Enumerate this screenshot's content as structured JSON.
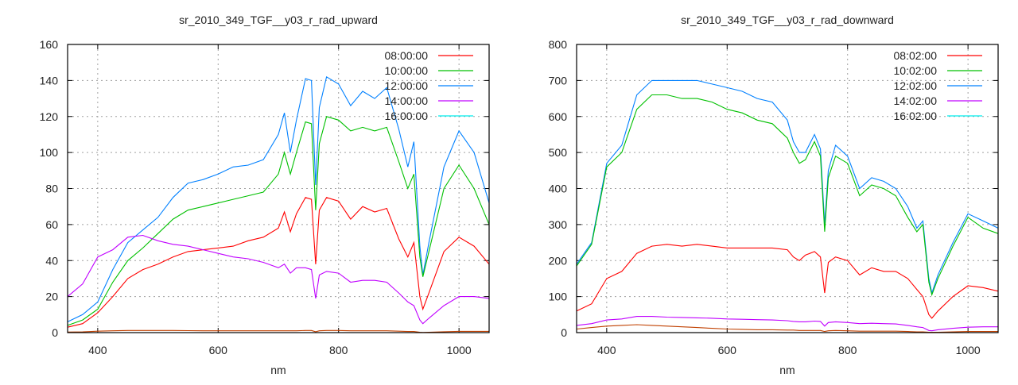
{
  "chart_data": [
    {
      "type": "line",
      "title": "sr_2010_349_TGF__y03_r_rad_upward",
      "xlabel": "nm",
      "ylabel": "",
      "xlim": [
        350,
        1050
      ],
      "ylim": [
        0,
        160
      ],
      "xticks": [
        400,
        600,
        800,
        1000
      ],
      "yticks": [
        0,
        20,
        40,
        60,
        80,
        100,
        120,
        140,
        160
      ],
      "grid": true,
      "legend_position": "top-right",
      "x": [
        350,
        375,
        400,
        425,
        450,
        475,
        500,
        525,
        550,
        575,
        600,
        625,
        650,
        675,
        700,
        710,
        720,
        730,
        745,
        755,
        762,
        768,
        780,
        800,
        820,
        840,
        860,
        880,
        900,
        915,
        925,
        935,
        940,
        950,
        975,
        1000,
        1025,
        1050
      ],
      "series": [
        {
          "name": "08:00:00",
          "legend_color": "#ff0000",
          "line_color": "#0080ff",
          "values": [
            6,
            10,
            17,
            35,
            50,
            57,
            64,
            75,
            83,
            85,
            88,
            92,
            93,
            96,
            110,
            122,
            100,
            118,
            141,
            140,
            82,
            125,
            142,
            138,
            126,
            134,
            130,
            136,
            113,
            92,
            106,
            48,
            32,
            50,
            92,
            112,
            100,
            72
          ]
        },
        {
          "name": "10:00:00",
          "legend_color": "#00c000",
          "line_color": "#00c000",
          "values": [
            4,
            7,
            13,
            28,
            40,
            47,
            55,
            63,
            68,
            70,
            72,
            74,
            76,
            78,
            88,
            100,
            88,
            100,
            117,
            116,
            68,
            105,
            120,
            118,
            112,
            114,
            112,
            114,
            95,
            80,
            88,
            42,
            31,
            45,
            80,
            93,
            80,
            60
          ]
        },
        {
          "name": "12:00:00",
          "legend_color": "#0080ff",
          "line_color": "#ff0000",
          "values": [
            3,
            5,
            11,
            20,
            30,
            35,
            38,
            42,
            45,
            46,
            47,
            48,
            51,
            53,
            58,
            67,
            56,
            66,
            75,
            74,
            38,
            68,
            75,
            73,
            63,
            70,
            67,
            69,
            52,
            42,
            50,
            20,
            13,
            22,
            45,
            53,
            48,
            38
          ]
        },
        {
          "name": "14:00:00",
          "legend_color": "#c000ff",
          "line_color": "#c000ff",
          "values": [
            20,
            27,
            42,
            46,
            53,
            54,
            51,
            49,
            48,
            46,
            44,
            42,
            41,
            39,
            36,
            38,
            33,
            36,
            36,
            35,
            19,
            32,
            34,
            33,
            28,
            29,
            29,
            28,
            22,
            17,
            15,
            7,
            5,
            8,
            15,
            20,
            20,
            19
          ]
        },
        {
          "name": "16:00:00",
          "legend_color": "#00eeee",
          "line_color": "#c04000",
          "values": [
            0.3,
            0.4,
            0.8,
            1,
            1.2,
            1.2,
            1.2,
            1.2,
            1.1,
            1,
            1,
            1,
            1,
            1,
            1,
            1,
            1,
            1,
            1.2,
            1.2,
            0.5,
            1,
            1.2,
            1.2,
            1,
            1,
            1,
            1,
            0.8,
            0.6,
            0.6,
            0.2,
            0.1,
            0.2,
            0.5,
            0.7,
            0.7,
            0.7
          ]
        }
      ]
    },
    {
      "type": "line",
      "title": "sr_2010_349_TGF__y03_r_rad_downward",
      "xlabel": "nm",
      "ylabel": "",
      "xlim": [
        350,
        1050
      ],
      "ylim": [
        0,
        800
      ],
      "xticks": [
        400,
        600,
        800,
        1000
      ],
      "yticks": [
        0,
        100,
        200,
        300,
        400,
        500,
        600,
        700,
        800
      ],
      "grid": true,
      "legend_position": "top-right",
      "x": [
        350,
        375,
        400,
        425,
        450,
        475,
        500,
        525,
        550,
        575,
        600,
        625,
        650,
        675,
        700,
        710,
        720,
        730,
        745,
        755,
        762,
        768,
        780,
        800,
        820,
        840,
        860,
        880,
        900,
        915,
        925,
        935,
        940,
        950,
        975,
        1000,
        1025,
        1050
      ],
      "series": [
        {
          "name": "08:02:00",
          "legend_color": "#ff0000",
          "line_color": "#0080ff",
          "values": [
            190,
            250,
            470,
            520,
            660,
            700,
            700,
            700,
            700,
            690,
            680,
            670,
            650,
            640,
            590,
            530,
            500,
            500,
            550,
            510,
            300,
            450,
            520,
            490,
            400,
            430,
            420,
            400,
            350,
            290,
            310,
            150,
            110,
            160,
            250,
            330,
            310,
            290
          ]
        },
        {
          "name": "10:02:00",
          "legend_color": "#00c000",
          "line_color": "#00c000",
          "values": [
            185,
            245,
            460,
            500,
            620,
            660,
            660,
            650,
            650,
            640,
            620,
            610,
            590,
            580,
            540,
            500,
            470,
            480,
            530,
            490,
            280,
            430,
            490,
            470,
            380,
            410,
            400,
            380,
            320,
            280,
            300,
            140,
            105,
            150,
            240,
            320,
            290,
            275
          ]
        },
        {
          "name": "12:02:00",
          "legend_color": "#0080ff",
          "line_color": "#ff0000",
          "values": [
            60,
            80,
            150,
            170,
            220,
            240,
            245,
            240,
            245,
            240,
            235,
            235,
            235,
            235,
            230,
            210,
            200,
            215,
            225,
            210,
            110,
            195,
            210,
            200,
            160,
            180,
            170,
            170,
            150,
            120,
            100,
            50,
            40,
            60,
            100,
            130,
            125,
            115
          ]
        },
        {
          "name": "14:02:00",
          "legend_color": "#c000ff",
          "line_color": "#c000ff",
          "values": [
            20,
            25,
            35,
            38,
            45,
            45,
            43,
            42,
            41,
            40,
            38,
            37,
            36,
            35,
            33,
            31,
            30,
            30,
            32,
            31,
            18,
            28,
            30,
            28,
            25,
            26,
            25,
            24,
            20,
            16,
            14,
            6,
            5,
            8,
            12,
            15,
            16,
            16
          ]
        },
        {
          "name": "16:02:00",
          "legend_color": "#00eeee",
          "line_color": "#c04000",
          "values": [
            10,
            14,
            18,
            20,
            22,
            20,
            18,
            16,
            14,
            12,
            10,
            9,
            8,
            8,
            7,
            7,
            6,
            6,
            6,
            6,
            3,
            5,
            6,
            5,
            4,
            4,
            4,
            4,
            3,
            2,
            2,
            1,
            1,
            1,
            2,
            3,
            3,
            3
          ]
        }
      ]
    }
  ]
}
